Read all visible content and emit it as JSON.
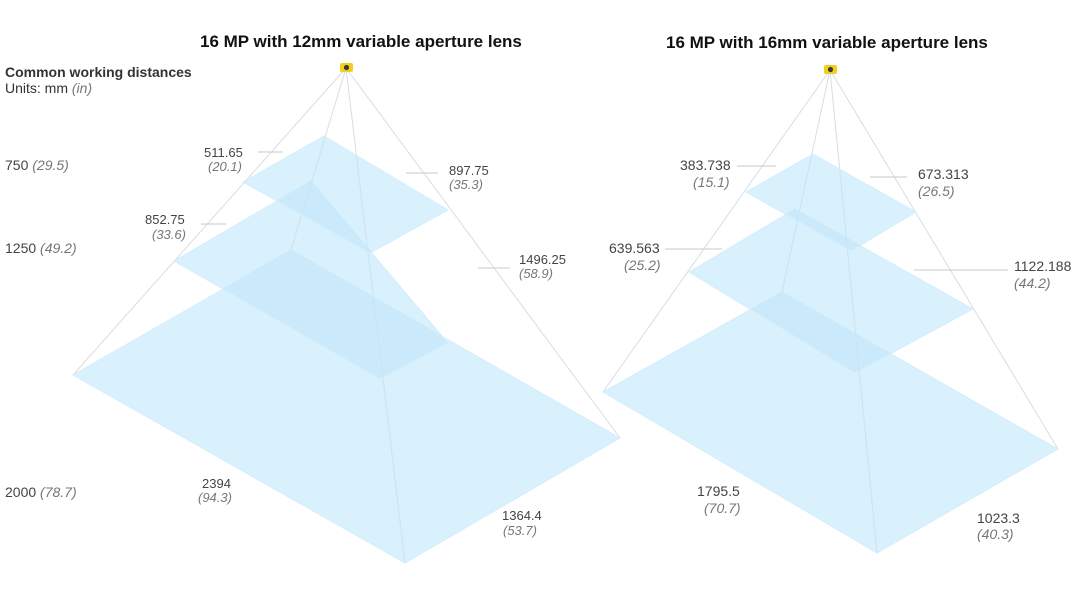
{
  "legend": {
    "heading": "Common working distances",
    "units_prefix": "Units: mm ",
    "units_suffix": "(in)"
  },
  "distances": [
    {
      "mm": "750",
      "in": "(29.5)"
    },
    {
      "mm": "1250",
      "in": "(49.2)"
    },
    {
      "mm": "2000",
      "in": "(78.7)"
    }
  ],
  "diagrams": [
    {
      "title": "16 MP with 12mm variable aperture lens",
      "fov": [
        {
          "width": "511.65",
          "width_in": "(20.1)",
          "height": "897.75",
          "height_in": "(35.3)"
        },
        {
          "width": "852.75",
          "width_in": "(33.6)",
          "height": "1496.25",
          "height_in": "(58.9)"
        },
        {
          "width": "2394",
          "width_in": "(94.3)",
          "height": "1364.4",
          "height_in": "(53.7)"
        }
      ]
    },
    {
      "title": "16 MP with 16mm variable aperture lens",
      "fov": [
        {
          "width": "383.738",
          "width_in": "(15.1)",
          "height": "673.313",
          "height_in": "(26.5)"
        },
        {
          "width": "639.563",
          "width_in": "(25.2)",
          "height": "1122.188",
          "height_in": "(44.2)"
        },
        {
          "width": "1795.5",
          "width_in": "(70.7)",
          "height": "1023.3",
          "height_in": "(40.3)"
        }
      ]
    }
  ],
  "colors": {
    "plane_fill": "#bfe6fb",
    "plane_edge": "#d6eefc",
    "frustum_line": "#d9dde2",
    "leader_line": "#c8c8c8",
    "camera_body": "#f2cf1d",
    "camera_lens": "#3a3a3a"
  }
}
